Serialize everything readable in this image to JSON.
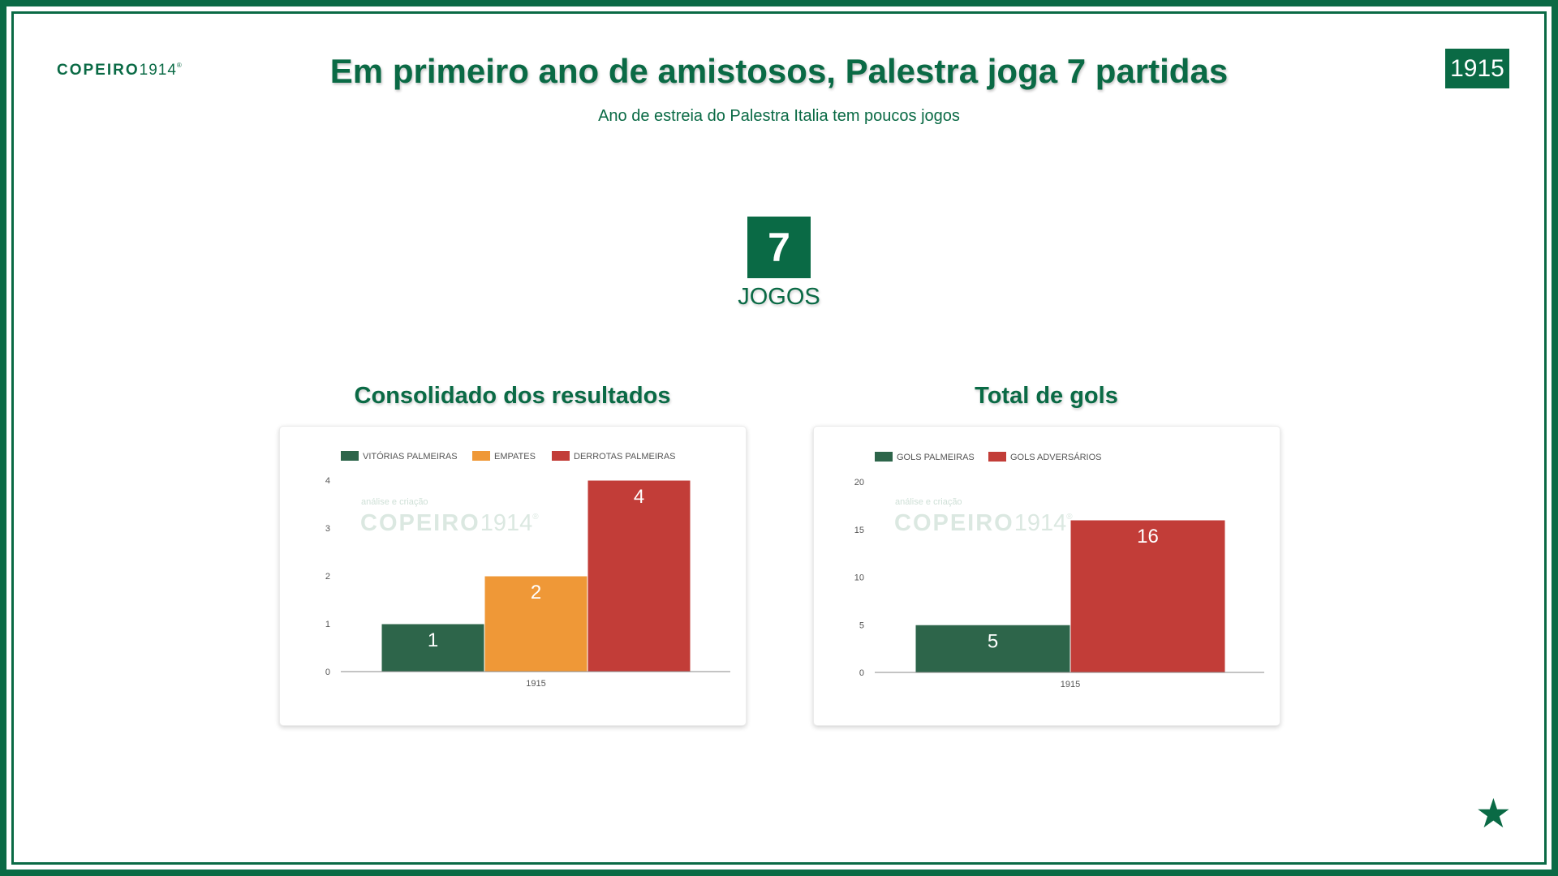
{
  "logo": {
    "brand": "COPEIRO",
    "year": "1914",
    "mark": "®"
  },
  "year_badge": "1915",
  "title": "Em primeiro ano de amistosos, Palestra joga 7 partidas",
  "subtitle": "Ano de estreia do Palestra Italia tem poucos jogos",
  "kpi": {
    "value": "7",
    "label": "JOGOS"
  },
  "watermark": {
    "small": "análise e criação",
    "brand": "COPEIRO",
    "year": "1914",
    "mark": "®"
  },
  "colors": {
    "green": "#0a6a45",
    "bar_green": "#2d654a",
    "orange": "#ef9837",
    "red": "#c23d38"
  },
  "chart_data": [
    {
      "type": "bar",
      "title": "Consolidado dos resultados",
      "categories": [
        "1915"
      ],
      "series": [
        {
          "name": "VITÓRIAS PALMEIRAS",
          "color": "#2d654a",
          "values": [
            1
          ]
        },
        {
          "name": "EMPATES",
          "color": "#ef9837",
          "values": [
            2
          ]
        },
        {
          "name": "DERROTAS PALMEIRAS",
          "color": "#c23d38",
          "values": [
            4
          ]
        }
      ],
      "ylim": [
        0,
        4
      ],
      "yticks": [
        0,
        1,
        2,
        3,
        4
      ],
      "legend": "top-left",
      "grid": false
    },
    {
      "type": "bar",
      "title": "Total de gols",
      "categories": [
        "1915"
      ],
      "series": [
        {
          "name": "GOLS PALMEIRAS",
          "color": "#2d654a",
          "values": [
            5
          ]
        },
        {
          "name": "GOLS ADVERSÁRIOS",
          "color": "#c23d38",
          "values": [
            16
          ]
        }
      ],
      "ylim": [
        0,
        20
      ],
      "yticks": [
        0,
        5,
        10,
        15,
        20
      ],
      "legend": "top-left",
      "grid": false
    }
  ]
}
